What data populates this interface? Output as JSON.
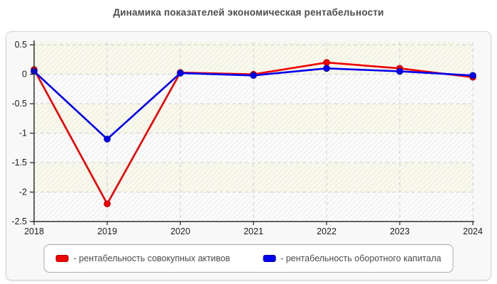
{
  "page": {
    "title": "Динамика показателей экономическая рентабельности"
  },
  "chart_data": {
    "type": "line",
    "title": "Динамика показателей экономическая рентабельности",
    "categories": [
      "2018",
      "2019",
      "2020",
      "2021",
      "2022",
      "2023",
      "2024"
    ],
    "series": [
      {
        "name": "рентабельность совокупных активов",
        "legend_label": "- рентабельность совокупных активов",
        "color": "#f00000",
        "edge_color": "#b30000",
        "values": [
          0.08,
          -2.2,
          0.03,
          0.0,
          0.2,
          0.1,
          -0.05
        ]
      },
      {
        "name": "рентабельность оборотного капитала",
        "legend_label": "- рентабельность оборотного капитала",
        "color": "#0000f0",
        "edge_color": "#0000a0",
        "values": [
          0.05,
          -1.1,
          0.02,
          -0.02,
          0.1,
          0.05,
          -0.02
        ]
      }
    ],
    "xlabel": "",
    "ylabel": "",
    "ylim": [
      -2.5,
      0.5
    ],
    "ytick_step": 0.5,
    "ytick_labels": [
      "0.5",
      "0",
      "-0.5",
      "-1",
      "-1.5",
      "-2",
      "-2.5"
    ],
    "grid": "dashed",
    "legend_position": "bottom",
    "marker": "circle",
    "plot_style": {
      "band_color_odd": "#f9f9ec",
      "band_color_even": "#fcfcfd",
      "hatch_color": "#e6e6df",
      "gridline_color": "#cfcfcf",
      "axis_color": "#2f2f2f",
      "tick_label_color": "#1c1c1c"
    }
  }
}
